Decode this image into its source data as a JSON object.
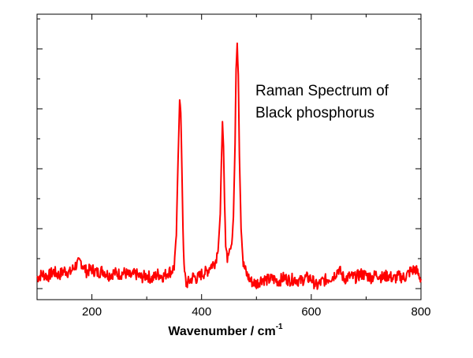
{
  "chart_data": {
    "type": "line",
    "title": "",
    "xlabel": "Wavenumber / cm",
    "xlabel_superscript": "-1",
    "ylabel": "",
    "xlim": [
      100,
      800
    ],
    "ylim": [
      0,
      1
    ],
    "x_ticks": [
      200,
      400,
      600,
      800
    ],
    "y_ticks_count": 5,
    "grid": false,
    "line_color": "#ff0000",
    "annotation": [
      "Raman Spectrum of",
      "Black phosphorus"
    ],
    "series": [
      {
        "name": "",
        "x": [
          100,
          110,
          120,
          130,
          140,
          150,
          160,
          170,
          180,
          190,
          200,
          210,
          220,
          230,
          240,
          250,
          260,
          270,
          280,
          290,
          300,
          310,
          320,
          330,
          340,
          345,
          350,
          354,
          357,
          360,
          362,
          364,
          366,
          368,
          372,
          378,
          385,
          392,
          400,
          410,
          415,
          420,
          425,
          430,
          434,
          436,
          438,
          440,
          442,
          444,
          447,
          450,
          455,
          458,
          461,
          463,
          465,
          467,
          469,
          472,
          476,
          482,
          490,
          500,
          510,
          520,
          530,
          540,
          550,
          560,
          570,
          580,
          590,
          600,
          610,
          620,
          630,
          640,
          650,
          660,
          670,
          680,
          690,
          700,
          710,
          720,
          730,
          740,
          750,
          760,
          770,
          780,
          790,
          800
        ],
        "values": [
          0.045,
          0.06,
          0.05,
          0.07,
          0.055,
          0.075,
          0.065,
          0.095,
          0.11,
          0.07,
          0.08,
          0.065,
          0.075,
          0.055,
          0.065,
          0.06,
          0.065,
          0.05,
          0.06,
          0.045,
          0.055,
          0.04,
          0.06,
          0.05,
          0.07,
          0.07,
          0.09,
          0.22,
          0.52,
          0.78,
          0.72,
          0.5,
          0.25,
          0.08,
          0.02,
          0.03,
          0.05,
          0.04,
          0.06,
          0.07,
          0.09,
          0.1,
          0.11,
          0.16,
          0.3,
          0.52,
          0.68,
          0.58,
          0.35,
          0.18,
          0.13,
          0.15,
          0.18,
          0.3,
          0.6,
          0.9,
          1.0,
          0.88,
          0.55,
          0.25,
          0.1,
          0.06,
          0.03,
          0.02,
          0.04,
          0.035,
          0.04,
          0.03,
          0.045,
          0.035,
          0.04,
          0.03,
          0.045,
          0.04,
          0.01,
          0.03,
          0.04,
          0.05,
          0.08,
          0.04,
          0.05,
          0.045,
          0.06,
          0.055,
          0.045,
          0.06,
          0.045,
          0.055,
          0.04,
          0.05,
          0.045,
          0.07,
          0.08,
          0.04
        ]
      }
    ]
  }
}
